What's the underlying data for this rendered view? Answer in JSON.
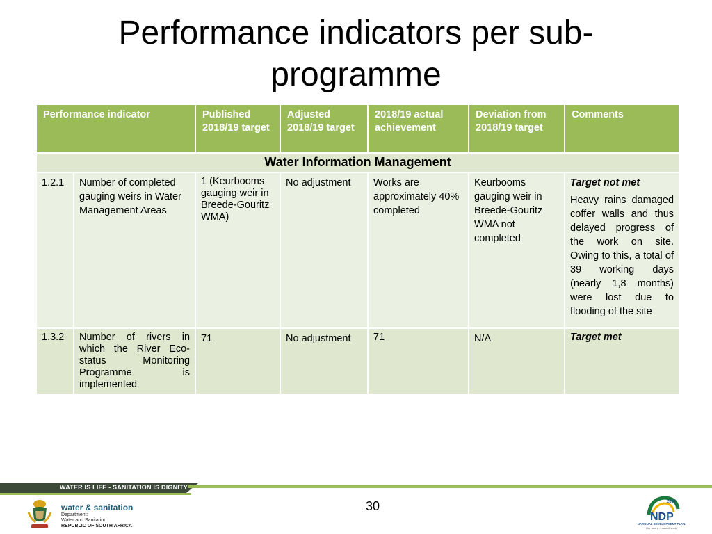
{
  "title": "Performance indicators per sub-programme",
  "table": {
    "headers": [
      "Performance indicator",
      "Published 2018/19 target",
      "Adjusted 2018/19 target",
      "2018/19 actual achievement",
      "Deviation from 2018/19 target",
      "Comments"
    ],
    "section": "Water Information Management",
    "rows": [
      {
        "num": "1.2.1",
        "indicator": "Number of completed gauging weirs in Water Management Areas",
        "published": "1 (Keurbooms gauging weir in Breede-Gouritz WMA)",
        "adjusted": "No adjustment",
        "actual": "Works are approximately 40% completed",
        "deviation": "Keurbooms gauging weir in Breede-Gouritz WMA not completed",
        "comment_head": "Target not met",
        "comment_body": "Heavy rains damaged coffer walls and thus delayed progress of the work on site. Owing to this, a total of 39 working days (nearly 1,8 months) were lost due to flooding of the site"
      },
      {
        "num": "1.3.2",
        "indicator": "Number of rivers in which the River Eco-status Monitoring Programme is implemented",
        "published": "71",
        "adjusted": "No adjustment",
        "actual": "71",
        "deviation": "N/A",
        "comment_head": "Target met",
        "comment_body": ""
      }
    ]
  },
  "footer": {
    "slogan": "WATER IS LIFE - SANITATION IS DIGNITY",
    "page_number": "30",
    "dept_brand": "water & sanitation",
    "dept_line1": "Department:",
    "dept_line2": "Water and Sanitation",
    "dept_line3": "REPUBLIC OF SOUTH AFRICA",
    "ndp_year": "2030",
    "ndp_mark": "NDP",
    "ndp_name": "NATIONAL DEVELOPMENT PLAN",
    "ndp_tagline": "Our future - make it work"
  },
  "colors": {
    "header_green": "#9bbb59",
    "row_light": "#ebf1e2",
    "row_mid": "#dfe8cf",
    "footer_dark": "#3d4a3a"
  },
  "icons": [
    "coat-of-arms-icon",
    "ndp-logo-icon"
  ]
}
